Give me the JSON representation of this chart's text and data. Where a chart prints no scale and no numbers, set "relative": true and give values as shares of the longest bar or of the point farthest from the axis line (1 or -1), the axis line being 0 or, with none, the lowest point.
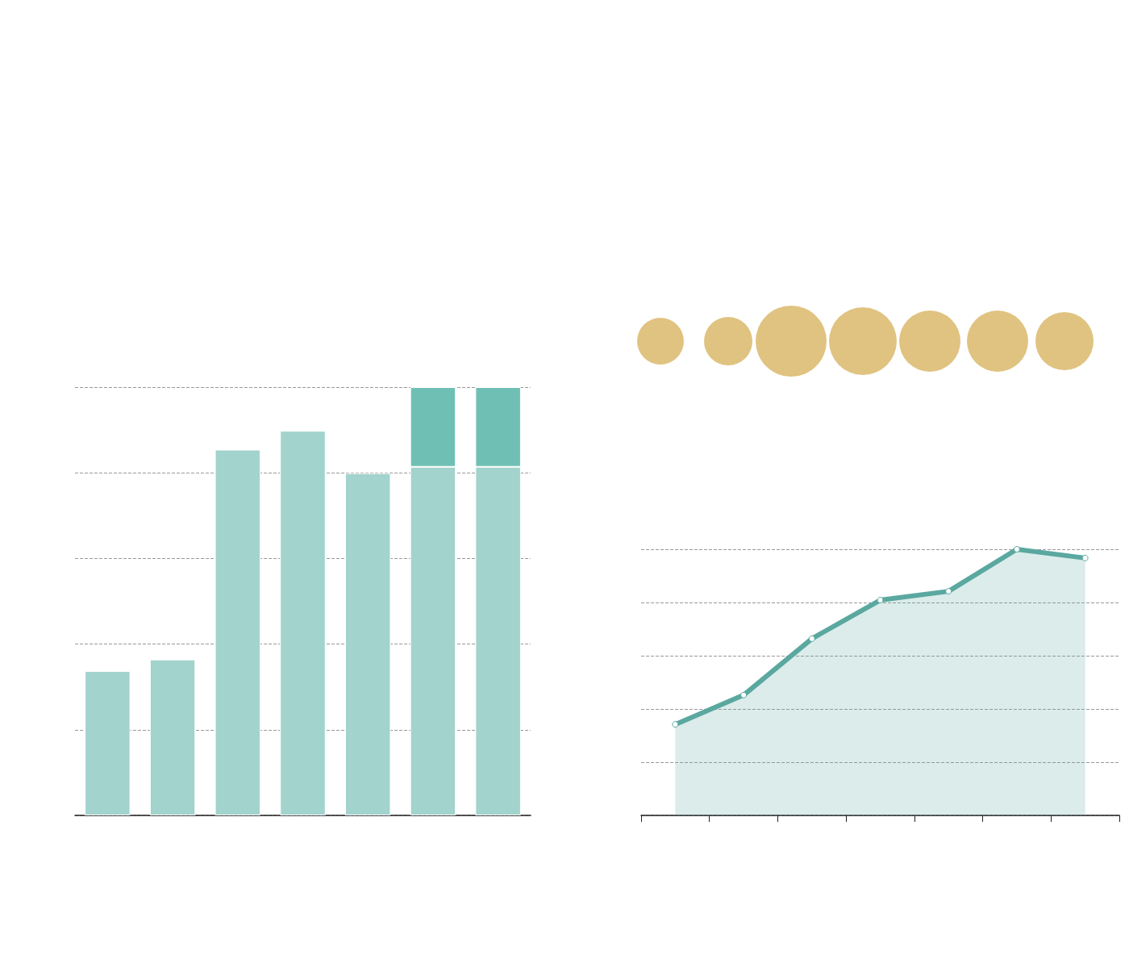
{
  "chart_data": [
    {
      "type": "bar",
      "relative": true,
      "stacked": true,
      "grid": "y",
      "categories": [
        null,
        null,
        null,
        null,
        null,
        null,
        null
      ],
      "series": [
        {
          "color": "#a2d3cc",
          "values": [
            0.337,
            0.364,
            0.854,
            0.898,
            0.799,
            0.814,
            0.814
          ]
        },
        {
          "color": "#70bfb4",
          "values": [
            null,
            null,
            null,
            null,
            null,
            0.186,
            0.186
          ]
        }
      ]
    },
    {
      "type": "area",
      "relative": true,
      "grid": "y",
      "marker": "circle",
      "categories": [
        null,
        null,
        null,
        null,
        null,
        null,
        null
      ],
      "series": [
        {
          "color": "#5aa8a0",
          "values": [
            0.342,
            0.452,
            0.664,
            0.809,
            0.842,
            1,
            0.967
          ]
        }
      ]
    }
  ]
}
